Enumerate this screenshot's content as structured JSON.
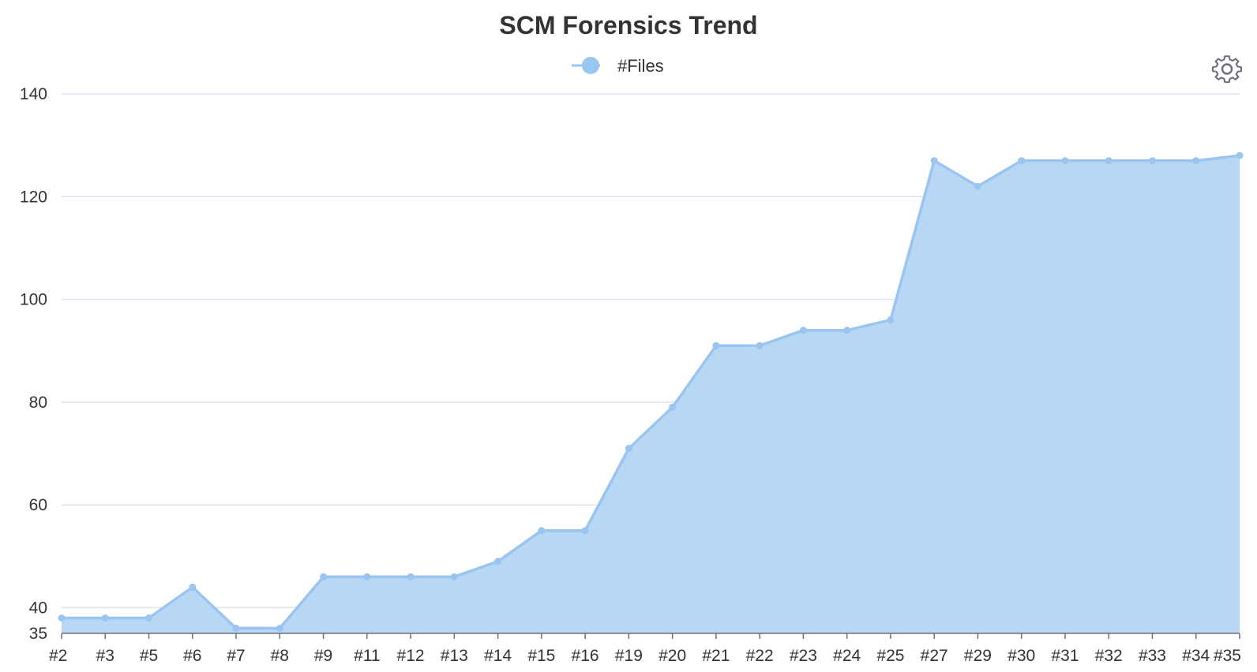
{
  "chart_data": {
    "type": "area",
    "title": "SCM Forensics Trend",
    "xlabel": "",
    "ylabel": "",
    "categories": [
      "#2",
      "#3",
      "#5",
      "#6",
      "#7",
      "#8",
      "#9",
      "#11",
      "#12",
      "#13",
      "#14",
      "#15",
      "#16",
      "#19",
      "#20",
      "#21",
      "#22",
      "#23",
      "#24",
      "#25",
      "#27",
      "#29",
      "#30",
      "#31",
      "#32",
      "#33",
      "#34",
      "#35"
    ],
    "series": [
      {
        "name": "#Files",
        "values": [
          38,
          38,
          38,
          44,
          36,
          36,
          46,
          46,
          46,
          46,
          49,
          55,
          55,
          71,
          79,
          91,
          91,
          94,
          94,
          96,
          127,
          122,
          127,
          127,
          127,
          127,
          127,
          128
        ]
      }
    ],
    "yticks": [
      35,
      40,
      60,
      80,
      100,
      120,
      140
    ],
    "ylim": [
      35,
      140
    ],
    "grid": true,
    "legend": "top-center",
    "colors": {
      "line": "#99c5f0",
      "fill": "#b7d7f5",
      "grid": "#e0e3ef",
      "axis": "#6e7079"
    }
  },
  "toolbar": {
    "settings_icon": "gear-icon"
  }
}
